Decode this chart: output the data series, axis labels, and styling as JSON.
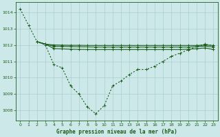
{
  "background_color": "#cce8e8",
  "grid_color": "#aacfcf",
  "line_color": "#1a5c1a",
  "title": "Graphe pression niveau de la mer (hPa)",
  "xlim": [
    -0.5,
    23.5
  ],
  "ylim": [
    1007.4,
    1014.6
  ],
  "yticks": [
    1008,
    1009,
    1010,
    1011,
    1012,
    1013,
    1014
  ],
  "xticks": [
    0,
    1,
    2,
    3,
    4,
    5,
    6,
    7,
    8,
    9,
    10,
    11,
    12,
    13,
    14,
    15,
    16,
    17,
    18,
    19,
    20,
    21,
    22,
    23
  ],
  "main_curve": {
    "x": [
      0,
      1,
      2,
      3,
      4,
      5,
      6,
      7,
      8,
      9,
      10,
      11,
      12,
      13,
      14,
      15,
      16,
      17,
      18,
      19,
      20,
      21,
      22,
      23
    ],
    "y": [
      1014.2,
      1013.2,
      1012.2,
      1012.0,
      1010.8,
      1010.6,
      1009.5,
      1009.0,
      1008.2,
      1007.8,
      1008.3,
      1009.5,
      1009.8,
      1010.2,
      1010.5,
      1010.5,
      1010.7,
      1011.0,
      1011.3,
      1011.5,
      1011.7,
      1011.9,
      1012.05,
      1011.95
    ]
  },
  "flat_lines": [
    {
      "x": [
        2,
        3,
        4,
        5,
        6,
        7,
        8,
        9,
        10,
        11,
        12,
        13,
        14,
        15,
        16,
        17,
        18,
        19,
        20,
        21,
        22,
        23
      ],
      "y": [
        1012.2,
        1012.05,
        1012.0,
        1011.99,
        1011.98,
        1011.98,
        1011.97,
        1011.97,
        1011.97,
        1011.97,
        1011.97,
        1011.97,
        1011.97,
        1011.97,
        1011.97,
        1011.97,
        1011.97,
        1011.97,
        1011.97,
        1011.97,
        1012.0,
        1011.97
      ]
    },
    {
      "x": [
        2,
        3,
        4,
        5,
        6,
        7,
        8,
        9,
        10,
        11,
        12,
        13,
        14,
        15,
        16,
        17,
        18,
        19,
        20,
        21,
        22,
        23
      ],
      "y": [
        1012.2,
        1012.05,
        1011.92,
        1011.91,
        1011.9,
        1011.89,
        1011.88,
        1011.87,
        1011.87,
        1011.87,
        1011.87,
        1011.87,
        1011.87,
        1011.87,
        1011.87,
        1011.87,
        1011.87,
        1011.87,
        1011.87,
        1011.9,
        1011.93,
        1011.87
      ]
    },
    {
      "x": [
        2,
        3,
        4,
        5,
        6,
        7,
        8,
        9,
        10,
        11,
        12,
        13,
        14,
        15,
        16,
        17,
        18,
        19,
        20,
        21,
        22,
        23
      ],
      "y": [
        1012.2,
        1012.05,
        1011.78,
        1011.76,
        1011.74,
        1011.73,
        1011.72,
        1011.72,
        1011.72,
        1011.72,
        1011.72,
        1011.72,
        1011.72,
        1011.72,
        1011.72,
        1011.72,
        1011.72,
        1011.72,
        1011.74,
        1011.77,
        1011.82,
        1011.72
      ]
    }
  ]
}
